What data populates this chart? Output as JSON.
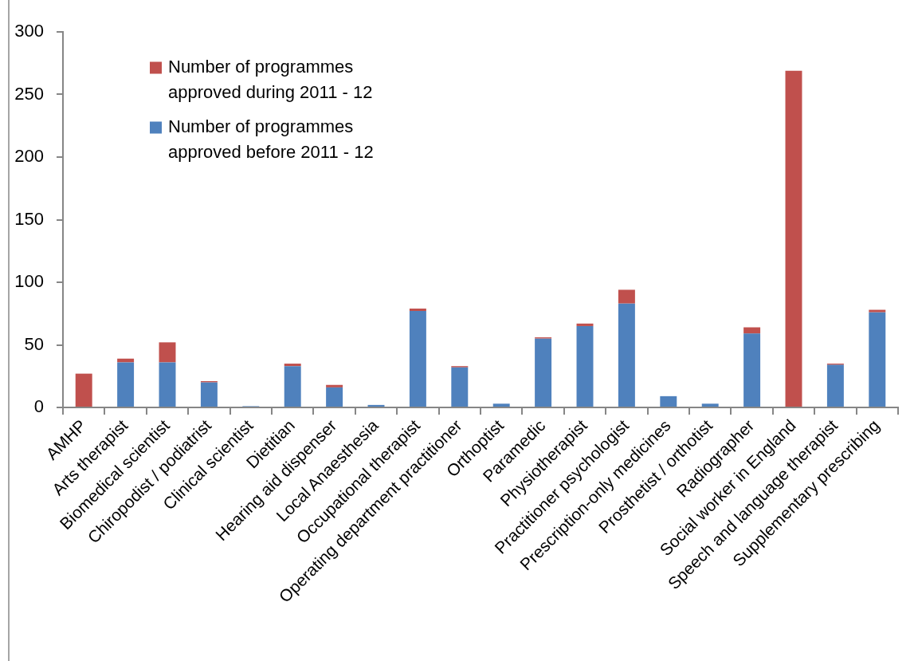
{
  "chart_data": {
    "type": "bar",
    "stacked": true,
    "categories": [
      "AMHP",
      "Arts therapist",
      "Biomedical scientist",
      "Chiropodist / podiatrist",
      "Clinical scientist",
      "Dietitian",
      "Hearing aid dispenser",
      "Local Anaesthesia",
      "Occupational therapist",
      "Operating department practitioner",
      "Orthoptist",
      "Paramedic",
      "Physiotherapist",
      "Practitioner psychologist",
      "Prescription-only medicines",
      "Prosthetist / orthotist",
      "Radiographer",
      "Social worker in England",
      "Speech and language therapist",
      "Supplementary prescribing"
    ],
    "series": [
      {
        "name": "Number of programmes approved before 2011 - 12",
        "color": "#4f81bd",
        "values": [
          0,
          36,
          36,
          20,
          1,
          33,
          16,
          2,
          77,
          32,
          3,
          55,
          65,
          83,
          9,
          3,
          59,
          0,
          34,
          76
        ]
      },
      {
        "name": "Number of programmes approved during 2011 - 12",
        "color": "#c0504d",
        "values": [
          27,
          3,
          16,
          1,
          0,
          2,
          2,
          0,
          2,
          1,
          0,
          1,
          2,
          11,
          0,
          0,
          5,
          269,
          1,
          2
        ]
      }
    ],
    "ylim": [
      0,
      300
    ],
    "yticks": [
      0,
      50,
      100,
      150,
      200,
      250,
      300
    ],
    "grid": false,
    "legend": "top left"
  }
}
